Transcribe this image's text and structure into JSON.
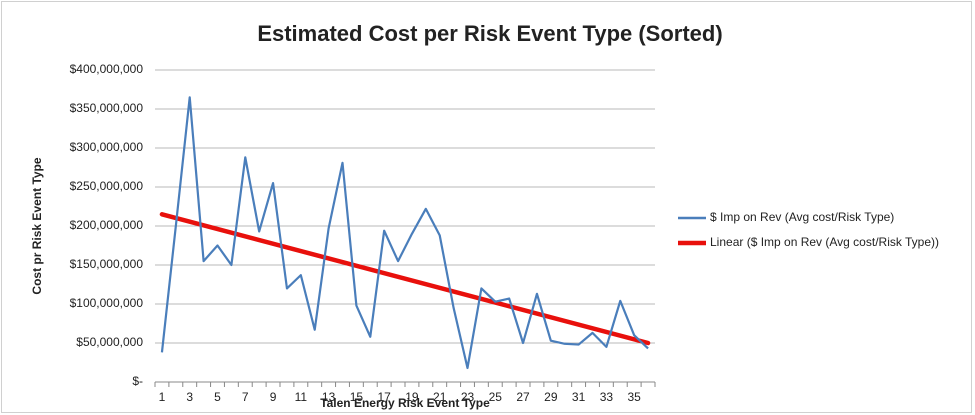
{
  "chart_data": {
    "type": "line",
    "title": "Estimated Cost per Risk Event Type (Sorted)",
    "x_label": "Talen Energy Risk Event Type",
    "y_label": "Cost pr Risk Event Type",
    "categories": [
      "1",
      null,
      "3",
      null,
      "5",
      null,
      "7",
      null,
      "9",
      null,
      "11",
      null,
      "13",
      null,
      "15",
      null,
      "17",
      null,
      "19",
      null,
      "21",
      null,
      "23",
      null,
      "25",
      null,
      "27",
      null,
      "29",
      null,
      "31",
      null,
      "33",
      null,
      "35",
      null
    ],
    "series": [
      {
        "name": "$ Imp on Rev (Avg cost/Risk Type)",
        "color": "#4a7ebb",
        "values": [
          38000000,
          200000000,
          365000000,
          155000000,
          175000000,
          150000000,
          288000000,
          193000000,
          255000000,
          120000000,
          137000000,
          67000000,
          197000000,
          281000000,
          98000000,
          58000000,
          194000000,
          155000000,
          190000000,
          222000000,
          188000000,
          95000000,
          18000000,
          120000000,
          103000000,
          107000000,
          50000000,
          113000000,
          53000000,
          49000000,
          48000000,
          63000000,
          45000000,
          104000000,
          60000000,
          43000000
        ]
      }
    ],
    "trendline": {
      "name": "Linear ($ Imp on Rev (Avg cost/Risk Type))",
      "color": "#e8100c",
      "start": 215000000,
      "end": 50000000
    },
    "ylim": [
      0,
      400000000
    ],
    "yticks": [
      {
        "value": 0,
        "label": "$-"
      },
      {
        "value": 50000000,
        "label": "$50,000,000"
      },
      {
        "value": 100000000,
        "label": "$100,000,000"
      },
      {
        "value": 150000000,
        "label": "$150,000,000"
      },
      {
        "value": 200000000,
        "label": "$200,000,000"
      },
      {
        "value": 250000000,
        "label": "$250,000,000"
      },
      {
        "value": 300000000,
        "label": "$300,000,000"
      },
      {
        "value": 350000000,
        "label": "$350,000,000"
      },
      {
        "value": 400000000,
        "label": "$400,000,000"
      }
    ],
    "grid": true,
    "legend": "right"
  }
}
